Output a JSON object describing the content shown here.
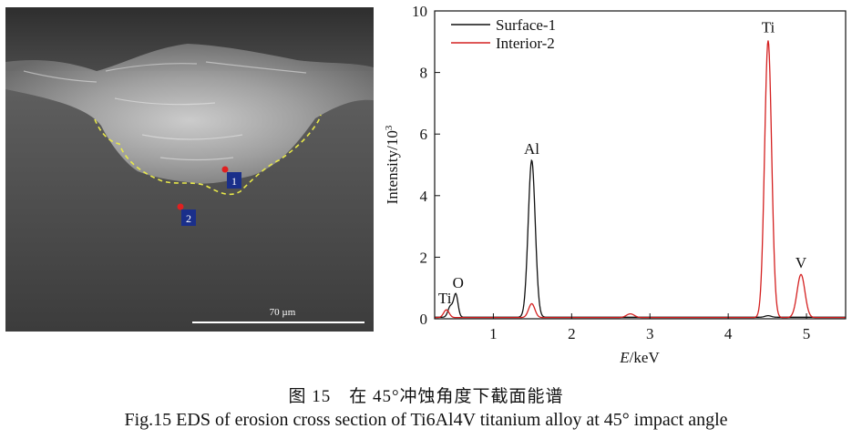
{
  "figure": {
    "caption_cn": "图 15　在 45°冲蚀角度下截面能谱",
    "caption_en": "Fig.15 EDS of erosion cross section of Ti6Al4V titanium alloy at 45° impact angle"
  },
  "sem_image": {
    "scale_bar_label": "70 µm",
    "points": [
      {
        "label": "1"
      },
      {
        "label": "2"
      }
    ],
    "colors": {
      "boundary": "#e8e84a",
      "marker": "#e02020",
      "label_box": "#1a2f8a"
    }
  },
  "chart_data": {
    "type": "line",
    "xlabel_italic": "E",
    "xlabel_rest": "/keV",
    "ylabel_base": "Intensity/10",
    "ylabel_sup": "3",
    "xlim": [
      0.25,
      5.5
    ],
    "ylim": [
      0,
      10
    ],
    "xticks": [
      1,
      2,
      3,
      4,
      5
    ],
    "yticks": [
      0,
      2,
      4,
      6,
      8,
      10
    ],
    "legend_position": "top-left",
    "series": [
      {
        "name": "Surface-1",
        "color": "#111111",
        "baseline": 0.05,
        "peaks": [
          {
            "x": 0.45,
            "y": 0.35,
            "w": 0.03
          },
          {
            "x": 0.52,
            "y": 0.75,
            "w": 0.028
          },
          {
            "x": 1.49,
            "y": 5.1,
            "w": 0.045
          },
          {
            "x": 4.51,
            "y": 0.05,
            "w": 0.04
          }
        ]
      },
      {
        "name": "Interior-2",
        "color": "#d42020",
        "baseline": 0.04,
        "peaks": [
          {
            "x": 0.4,
            "y": 0.25,
            "w": 0.035
          },
          {
            "x": 1.49,
            "y": 0.45,
            "w": 0.04
          },
          {
            "x": 2.75,
            "y": 0.12,
            "w": 0.05
          },
          {
            "x": 4.51,
            "y": 9.0,
            "w": 0.045
          },
          {
            "x": 4.93,
            "y": 1.4,
            "w": 0.05
          }
        ]
      }
    ],
    "peak_labels": [
      {
        "text": "Ti",
        "x": 0.38,
        "y": 0.5
      },
      {
        "text": "O",
        "x": 0.55,
        "y": 1.0
      },
      {
        "text": "Al",
        "x": 1.49,
        "y": 5.35
      },
      {
        "text": "Ti",
        "x": 4.51,
        "y": 9.3
      },
      {
        "text": "V",
        "x": 4.93,
        "y": 1.65
      }
    ]
  }
}
